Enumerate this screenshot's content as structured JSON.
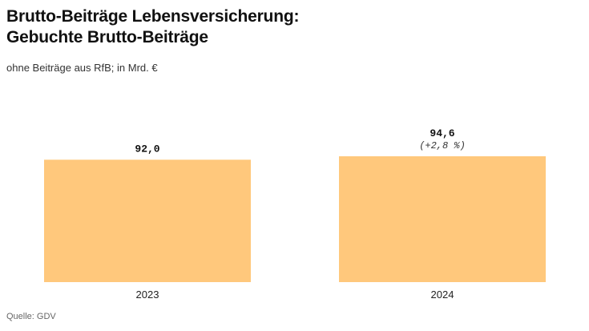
{
  "title_line1": "Brutto-Beiträge Lebensversicherung:",
  "title_line2": "Gebuchte Brutto-Beiträge",
  "subtitle": "ohne Beiträge aus RfB; in Mrd. €",
  "source": "Quelle: GDV",
  "colors": {
    "bar": "#ffc87c",
    "baseline": "#222222"
  },
  "chart_data": {
    "type": "bar",
    "categories": [
      "2023",
      "2024"
    ],
    "values": [
      92.0,
      94.6
    ],
    "data_labels": [
      "92,0",
      "94,6"
    ],
    "change_labels": [
      "",
      "(+2,8 %)"
    ],
    "ylim": [
      0,
      100
    ],
    "grid": false,
    "legend": "none"
  }
}
